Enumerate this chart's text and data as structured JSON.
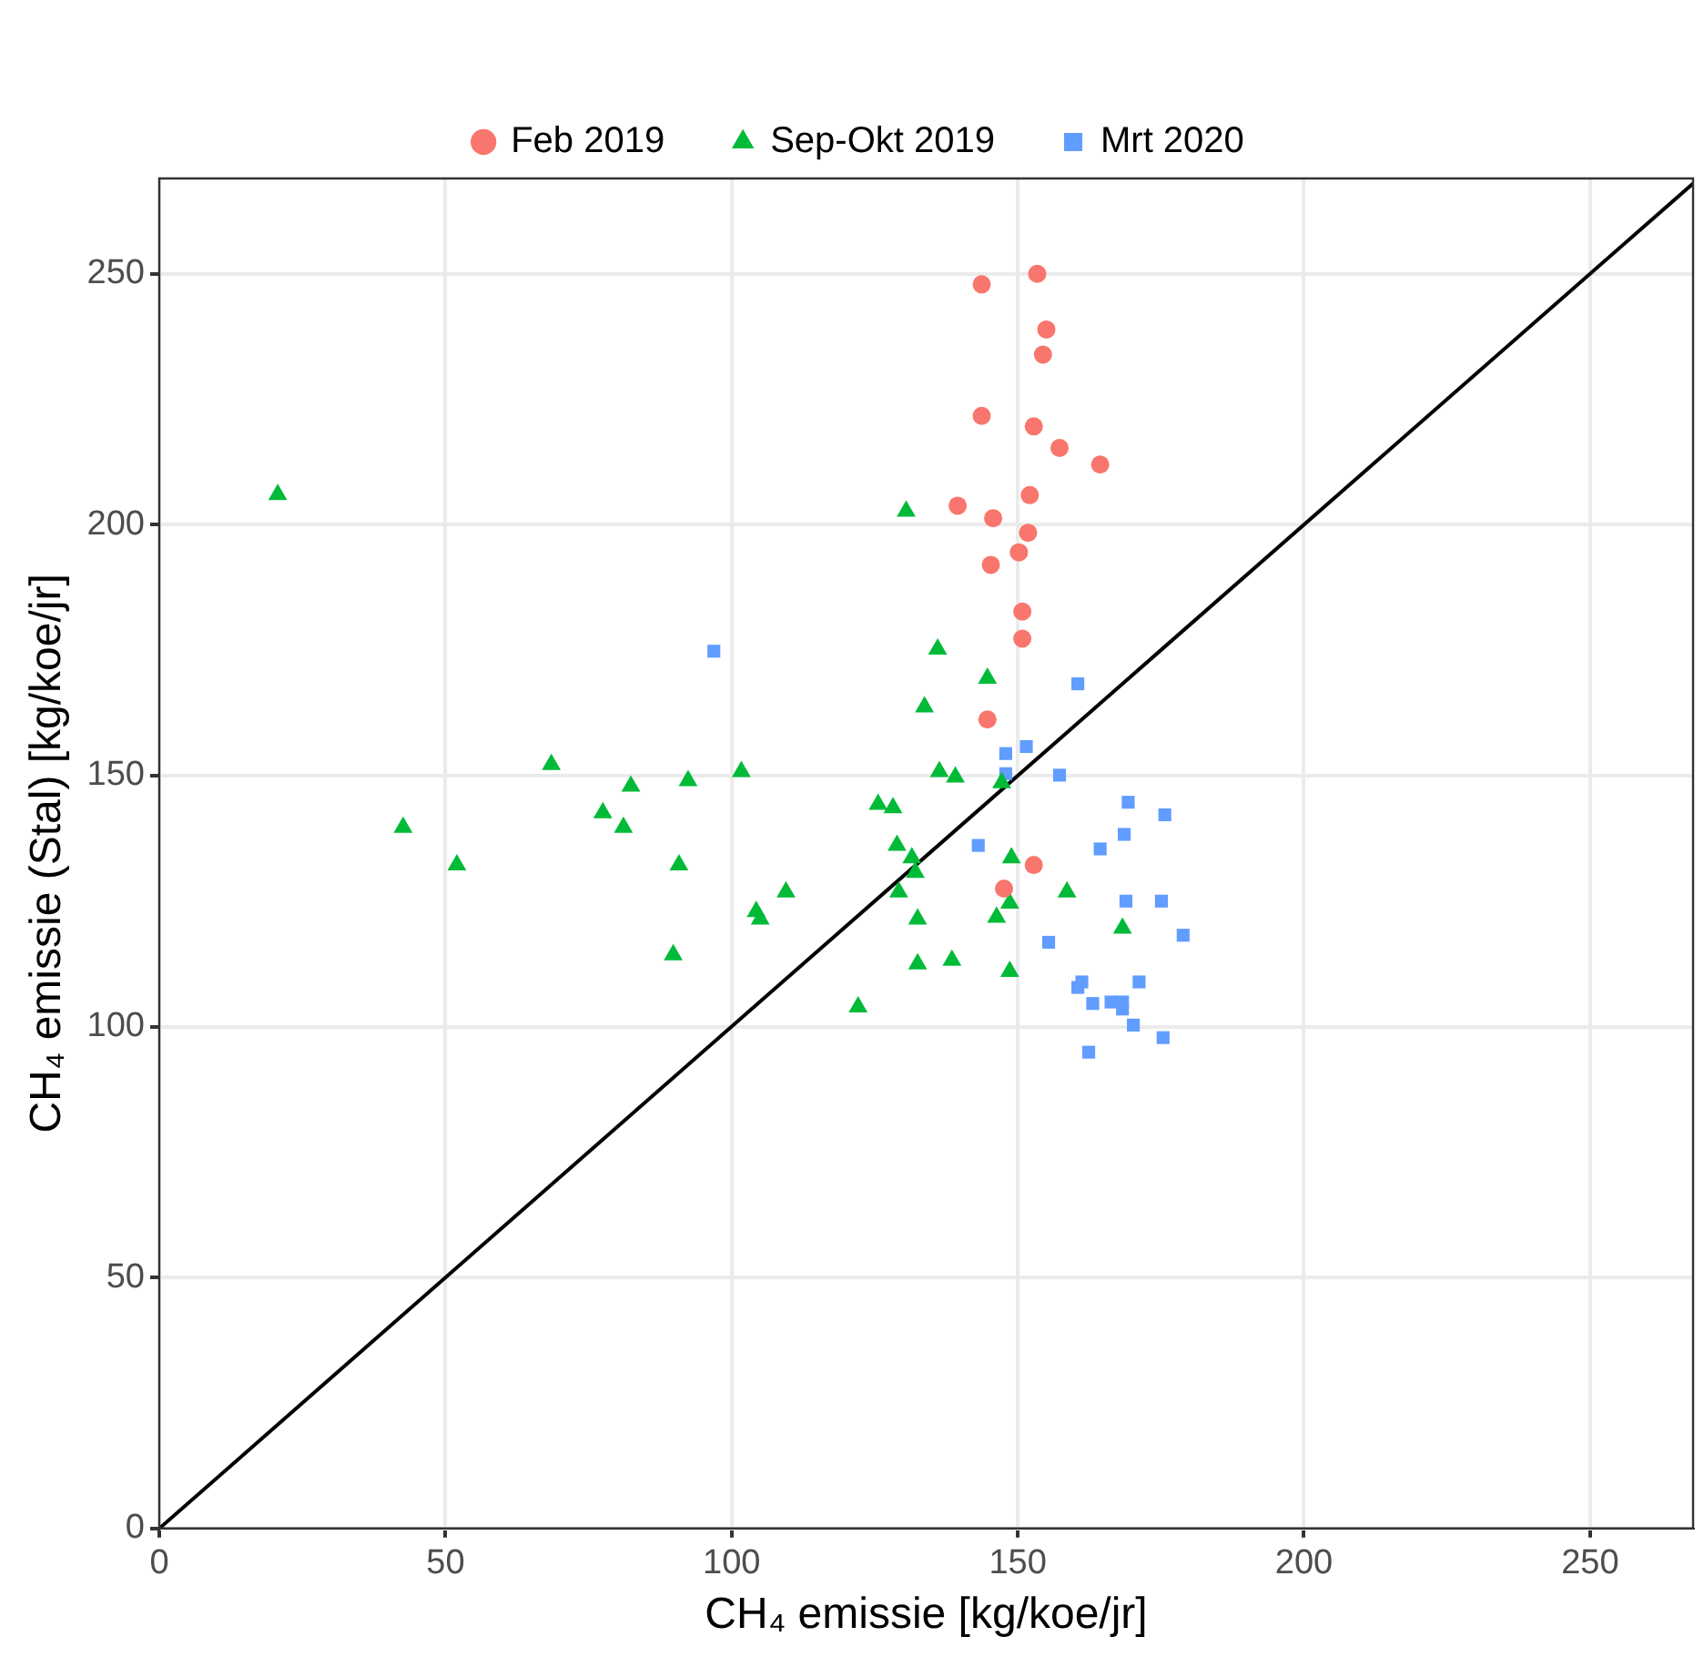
{
  "chart_data": {
    "type": "scatter",
    "xlabel": "CH₄ emissie [kg/koe/jr]",
    "ylabel": "CH₄ emissie (Stal) [kg/koe/jr]",
    "xlim": [
      0,
      268
    ],
    "ylim": [
      0,
      269
    ],
    "xticks": [
      0,
      50,
      100,
      150,
      200,
      250
    ],
    "yticks": [
      0,
      50,
      100,
      150,
      200,
      250
    ],
    "grid": true,
    "legend": "top",
    "series": [
      {
        "name": "Feb 2019",
        "color": "#f8766d",
        "marker": "circle",
        "x": [
          153.4,
          143.7,
          155.0,
          154.4,
          143.7,
          152.8,
          157.3,
          164.4,
          152.1,
          139.5,
          145.7,
          151.8,
          150.2,
          145.3,
          150.8,
          150.8,
          144.7,
          152.8,
          147.6
        ],
        "values": [
          250.0,
          247.9,
          238.9,
          233.9,
          221.7,
          219.6,
          215.3,
          212.0,
          205.9,
          203.8,
          201.3,
          198.4,
          194.5,
          192.0,
          182.7,
          177.3,
          161.2,
          132.2,
          127.5
        ]
      },
      {
        "name": "Sep-Okt 2019",
        "color": "#00ba38",
        "marker": "triangle",
        "x": [
          20.7,
          42.6,
          52.0,
          68.5,
          77.5,
          82.4,
          81.1,
          89.8,
          90.8,
          92.4,
          101.7,
          104.3,
          105.0,
          109.5,
          122.1,
          125.6,
          128.2,
          128.9,
          129.2,
          130.5,
          131.5,
          132.1,
          132.5,
          132.5,
          133.7,
          136.0,
          136.3,
          138.5,
          139.1,
          144.7,
          146.3,
          147.2,
          148.6,
          148.9,
          148.6,
          158.6,
          168.3
        ],
        "values": [
          206.0,
          139.7,
          132.2,
          152.2,
          142.6,
          147.9,
          139.7,
          114.3,
          132.2,
          149.0,
          150.8,
          122.9,
          121.4,
          126.8,
          103.9,
          144.3,
          143.6,
          136.1,
          126.8,
          202.7,
          133.6,
          130.7,
          121.4,
          112.5,
          163.7,
          175.2,
          150.8,
          113.2,
          149.7,
          169.4,
          121.8,
          148.6,
          124.6,
          133.6,
          111.0,
          126.8,
          119.6
        ]
      },
      {
        "name": "Mrt 2020",
        "color": "#619cff",
        "marker": "square",
        "x": [
          96.9,
          160.5,
          151.5,
          147.9,
          147.9,
          157.3,
          169.3,
          175.7,
          168.6,
          164.4,
          143.1,
          168.9,
          175.1,
          178.9,
          155.4,
          161.2,
          160.5,
          171.2,
          163.1,
          166.3,
          168.3,
          168.3,
          170.2,
          175.4,
          162.4
        ],
        "values": [
          174.8,
          168.3,
          155.8,
          154.4,
          150.4,
          150.1,
          144.7,
          142.2,
          138.3,
          135.4,
          136.1,
          125.0,
          125.0,
          118.2,
          116.8,
          108.9,
          107.8,
          108.9,
          104.6,
          104.9,
          104.9,
          103.5,
          100.3,
          97.8,
          94.9
        ]
      },
      {
        "type": "line",
        "color": "#000000",
        "marker": "none",
        "x": [
          0,
          268
        ],
        "values": [
          0,
          268
        ]
      }
    ]
  }
}
